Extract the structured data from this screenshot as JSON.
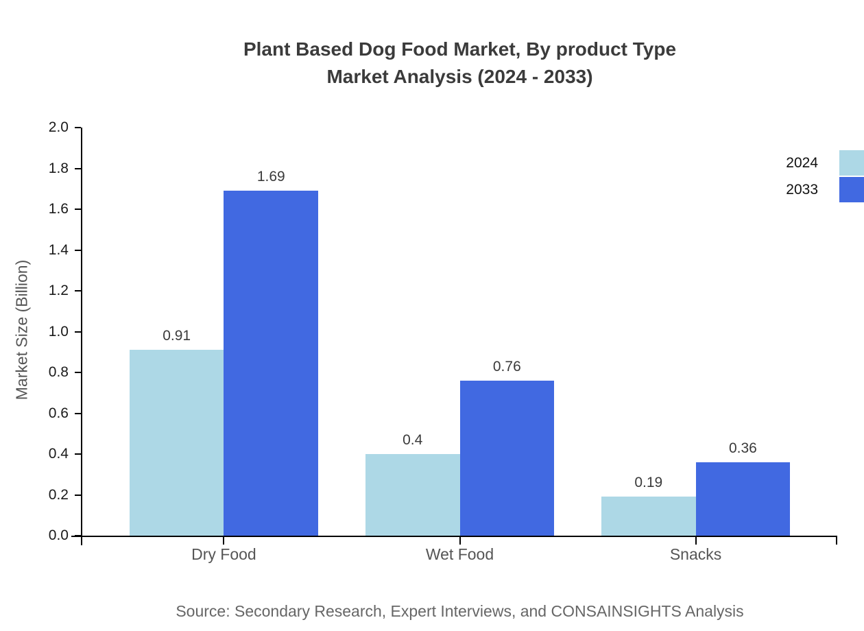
{
  "chart": {
    "title_line1": "Plant Based Dog Food Market, By product Type",
    "title_line2": "Market Analysis (2024 - 2033)",
    "source": "Source: Secondary Research, Expert Interviews, and CONSAINSIGHTS Analysis"
  },
  "chart_data": {
    "type": "bar",
    "title": "Plant Based Dog Food Market, By product Type Market Analysis (2024 - 2033)",
    "categories": [
      "Dry Food",
      "Wet Food",
      "Snacks"
    ],
    "series": [
      {
        "name": "2024",
        "color": "#ADD8E6",
        "values": [
          0.91,
          0.4,
          0.19
        ]
      },
      {
        "name": "2033",
        "color": "#4169E1",
        "values": [
          1.69,
          0.76,
          0.36
        ]
      }
    ],
    "xlabel": "",
    "ylabel": "Market Size (Billion)",
    "ylim": [
      0,
      2
    ],
    "ytick_step": 0.2,
    "ytick_format_decimals": 1,
    "grid": false,
    "background": "#ffffff",
    "legend_position": "top-right",
    "bar_value_labels_shown": true
  }
}
